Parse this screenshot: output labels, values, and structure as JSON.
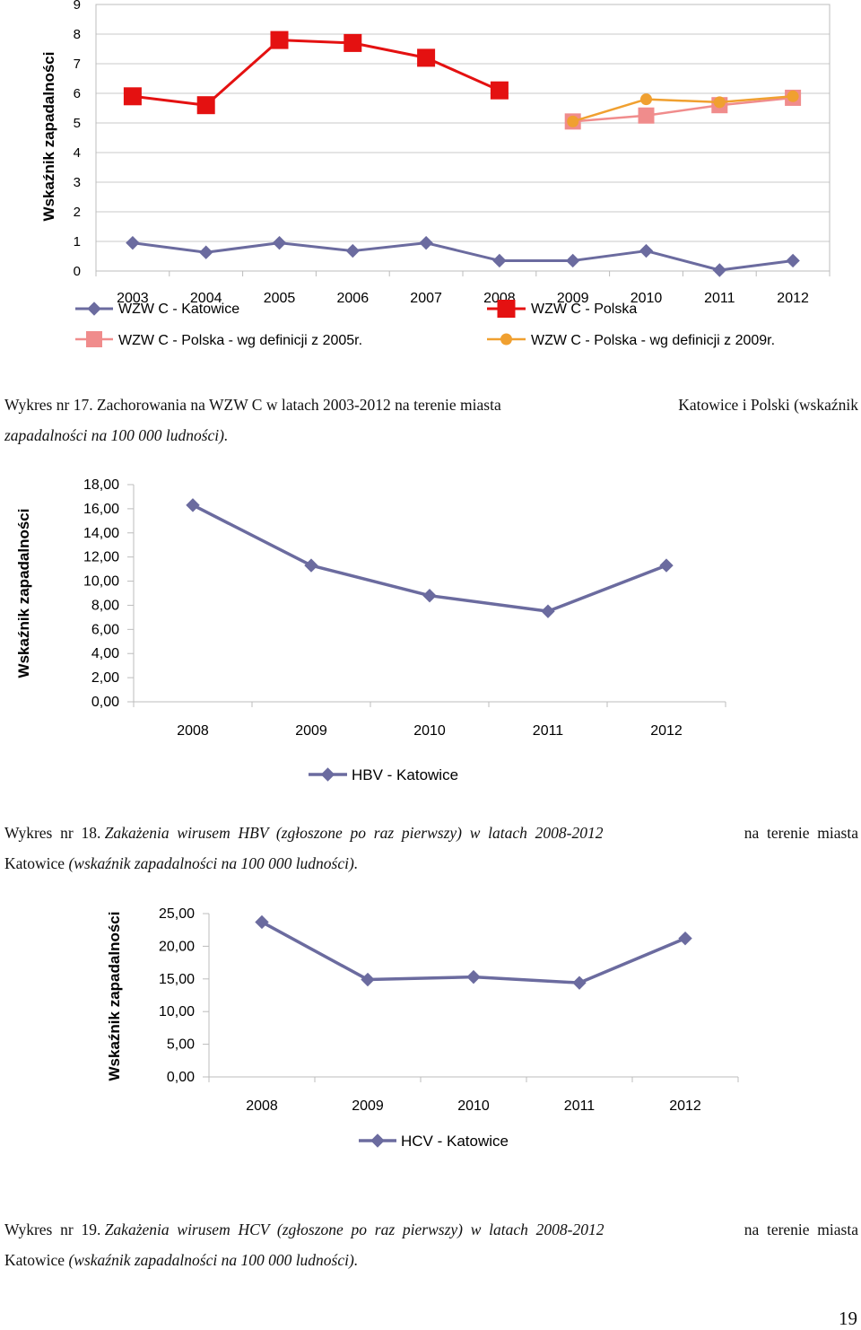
{
  "chart_data": [
    {
      "type": "line",
      "ylabel": "Wskaźnik zapadalności",
      "ylim": [
        0,
        9
      ],
      "yticks": [
        "0",
        "1",
        "2",
        "3",
        "4",
        "5",
        "6",
        "7",
        "8",
        "9"
      ],
      "categories": [
        "2003",
        "2004",
        "2005",
        "2006",
        "2007",
        "2008",
        "2009",
        "2010",
        "2011",
        "2012"
      ],
      "grid": true,
      "legend_position": "bottom",
      "series": [
        {
          "name": "WZW C - Katowice",
          "color": "#6B6B9F",
          "marker": "diamond",
          "values": [
            0.95,
            0.63,
            0.95,
            0.68,
            0.95,
            0.35,
            0.35,
            0.68,
            0.03,
            0.35
          ]
        },
        {
          "name": "WZW C - Polska",
          "color": "#E41111",
          "marker": "square",
          "values": [
            5.9,
            5.6,
            7.8,
            7.7,
            7.2,
            6.1,
            null,
            null,
            null,
            null
          ]
        },
        {
          "name": "WZW C - Polska - wg definicji z 2005r.",
          "color": "#F08C8C",
          "marker": "square",
          "values": [
            null,
            null,
            null,
            null,
            null,
            null,
            5.05,
            5.25,
            5.6,
            5.85
          ]
        },
        {
          "name": "WZW C - Polska - wg definicji z 2009r.",
          "color": "#F0A030",
          "marker": "circle",
          "values": [
            null,
            null,
            null,
            null,
            null,
            null,
            5.05,
            5.8,
            5.7,
            5.9
          ]
        }
      ]
    },
    {
      "type": "line",
      "ylabel": "Wskaźnik zapadalności",
      "ylim": [
        0,
        18
      ],
      "yticks": [
        "0,00",
        "2,00",
        "4,00",
        "6,00",
        "8,00",
        "10,00",
        "12,00",
        "14,00",
        "16,00",
        "18,00"
      ],
      "categories": [
        "2008",
        "2009",
        "2010",
        "2011",
        "2012"
      ],
      "grid": false,
      "legend_position": "bottom",
      "series": [
        {
          "name": "HBV - Katowice",
          "color": "#6B6B9F",
          "marker": "diamond",
          "values": [
            16.3,
            11.3,
            8.8,
            7.5,
            11.3
          ]
        }
      ]
    },
    {
      "type": "line",
      "ylabel": "Wskaźnik zapadalności",
      "ylim": [
        0,
        25
      ],
      "yticks": [
        "0,00",
        "5,00",
        "10,00",
        "15,00",
        "20,00",
        "25,00"
      ],
      "categories": [
        "2008",
        "2009",
        "2010",
        "2011",
        "2012"
      ],
      "grid": false,
      "legend_position": "bottom",
      "series": [
        {
          "name": "HCV - Katowice",
          "color": "#6B6B9F",
          "marker": "diamond",
          "values": [
            23.7,
            14.9,
            15.3,
            14.4,
            21.2
          ]
        }
      ]
    }
  ],
  "captions": {
    "c17": {
      "line1": [
        "Wykres nr 17. Zachorowania na WZW C w latach 2003-2012 na terenie miasta",
        "Katowice i Polski (wskaźnik"
      ],
      "line2": "zapadalności na 100 000 ludności)."
    },
    "c18": {
      "lead": "Wykres  nr  18.",
      "line1_italic": "Zakażenia  wirusem  HBV  (zgłoszone  po  raz  pierwszy)  w  latach  2008-2012",
      "line1_end": "na  terenie  miasta",
      "line2_plain": "Katowice",
      "line2_italic": "(wskaźnik zapadalności na 100 000 ludności)."
    },
    "c19": {
      "lead": "Wykres  nr  19.",
      "line1_italic": "Zakażenia  wirusem  HCV  (zgłoszone  po  raz  pierwszy)  w  latach  2008-2012",
      "line1_end": "na  terenie  miasta",
      "line2_plain": "Katowice",
      "line2_italic": "(wskaźnik zapadalności na 100 000 ludności)."
    }
  },
  "page_number": "19"
}
